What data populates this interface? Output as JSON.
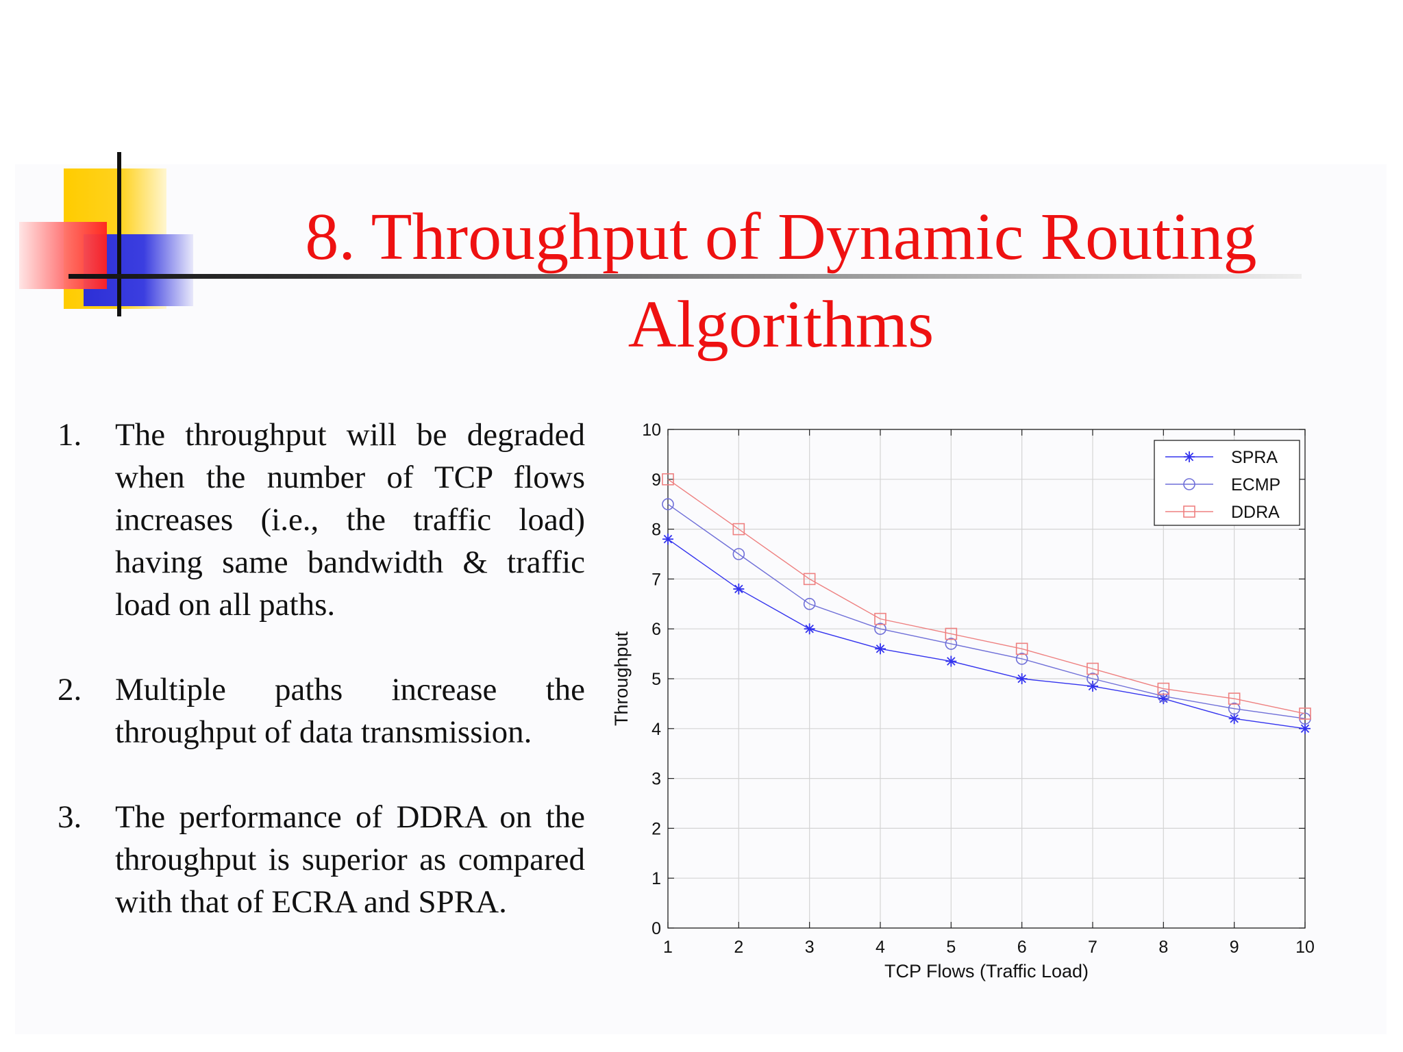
{
  "slide": {
    "title": "8. Throughput of Dynamic Routing Algorithms",
    "points": [
      {
        "number": "1.",
        "text": "The throughput will be degraded when the number of TCP flows increases (i.e., the traffic load) having same bandwidth & traffic load on all paths."
      },
      {
        "number": "2.",
        "text": "Multiple paths increase the throughput of data transmission."
      },
      {
        "number": "3.",
        "text": "The performance of DDRA on the throughput is superior as compared with that of ECRA and SPRA."
      }
    ]
  },
  "colors": {
    "title": "#ee1111",
    "spra": "#3333ee",
    "ecmp": "#6f6fd8",
    "ddra": "#ee8080"
  },
  "chart_data": {
    "type": "line",
    "title": "",
    "xlabel": "TCP Flows (Traffic Load)",
    "ylabel": "Throughput",
    "x": [
      1,
      2,
      3,
      4,
      5,
      6,
      7,
      8,
      9,
      10
    ],
    "xlim": [
      1,
      10
    ],
    "ylim": [
      0,
      10
    ],
    "xticks": [
      1,
      2,
      3,
      4,
      5,
      6,
      7,
      8,
      9,
      10
    ],
    "yticks": [
      0,
      1,
      2,
      3,
      4,
      5,
      6,
      7,
      8,
      9,
      10
    ],
    "grid": true,
    "legend_position": "top-right",
    "series": [
      {
        "name": "SPRA",
        "marker": "star",
        "values": [
          7.8,
          6.8,
          6.0,
          5.6,
          5.35,
          5.0,
          4.85,
          4.6,
          4.2,
          4.0
        ]
      },
      {
        "name": "ECMP",
        "marker": "circle",
        "values": [
          8.5,
          7.5,
          6.5,
          6.0,
          5.7,
          5.4,
          5.0,
          4.65,
          4.4,
          4.2
        ]
      },
      {
        "name": "DDRA",
        "marker": "square",
        "values": [
          9.0,
          8.0,
          7.0,
          6.2,
          5.9,
          5.6,
          5.2,
          4.8,
          4.6,
          4.3
        ]
      }
    ]
  }
}
